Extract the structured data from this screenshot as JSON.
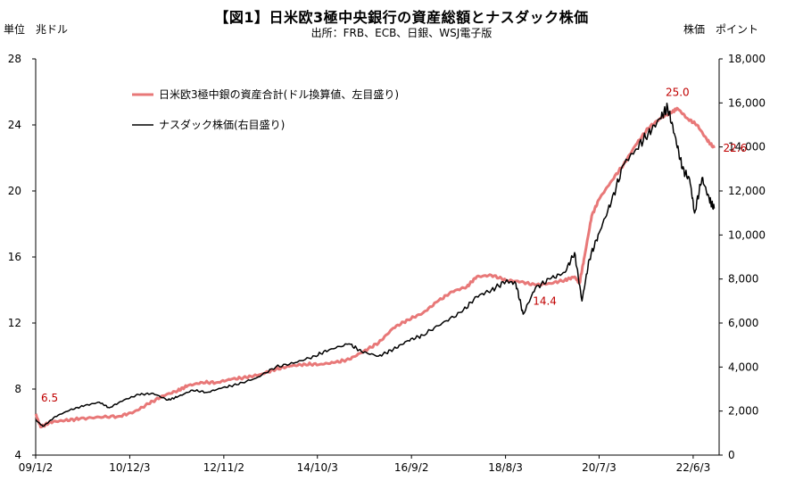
{
  "chart_data": {
    "type": "line",
    "title": "【図1】日米欧3極中央銀行の資産総額とナスダック株価",
    "subtitle": "出所：FRB、ECB、日銀、WSJ電子版",
    "left_axis_label": "単位　兆ドル",
    "right_axis_label": "株価　ポイント",
    "x_tick_labels": [
      "09/1/2",
      "10/12/3",
      "12/11/2",
      "14/10/3",
      "16/9/2",
      "18/8/3",
      "20/7/3",
      "22/6/3"
    ],
    "x_tick_years": [
      2009.0,
      2010.92,
      2012.84,
      2014.75,
      2016.67,
      2018.59,
      2020.5,
      2022.42
    ],
    "x_range": [
      2009.0,
      2022.95
    ],
    "y_left": {
      "min": 4,
      "max": 28,
      "ticks": [
        4,
        8,
        12,
        16,
        20,
        24,
        28
      ]
    },
    "y_right": {
      "min": 0,
      "max": 18000,
      "ticks": [
        "0",
        "2,000",
        "4,000",
        "6,000",
        "8,000",
        "10,000",
        "12,000",
        "14,000",
        "16,000",
        "18,000"
      ]
    },
    "legend": {
      "placement": "top-left"
    },
    "series": [
      {
        "name": "日米欧3極中銀の資産合計(ドル換算値、左目盛り)",
        "axis": "left",
        "color": "#e87878",
        "points": [
          [
            2009.0,
            6.5
          ],
          [
            2009.1,
            5.7
          ],
          [
            2009.3,
            6.0
          ],
          [
            2009.6,
            6.1
          ],
          [
            2009.9,
            6.2
          ],
          [
            2010.3,
            6.3
          ],
          [
            2010.7,
            6.35
          ],
          [
            2011.0,
            6.6
          ],
          [
            2011.3,
            7.1
          ],
          [
            2011.6,
            7.6
          ],
          [
            2011.9,
            7.9
          ],
          [
            2012.1,
            8.2
          ],
          [
            2012.4,
            8.4
          ],
          [
            2012.7,
            8.4
          ],
          [
            2013.0,
            8.6
          ],
          [
            2013.3,
            8.7
          ],
          [
            2013.6,
            8.9
          ],
          [
            2013.9,
            9.2
          ],
          [
            2014.2,
            9.4
          ],
          [
            2014.5,
            9.5
          ],
          [
            2014.8,
            9.5
          ],
          [
            2015.1,
            9.6
          ],
          [
            2015.4,
            9.8
          ],
          [
            2015.7,
            10.3
          ],
          [
            2016.0,
            10.8
          ],
          [
            2016.3,
            11.7
          ],
          [
            2016.6,
            12.2
          ],
          [
            2016.9,
            12.6
          ],
          [
            2017.2,
            13.3
          ],
          [
            2017.5,
            13.9
          ],
          [
            2017.8,
            14.2
          ],
          [
            2018.0,
            14.8
          ],
          [
            2018.3,
            14.9
          ],
          [
            2018.6,
            14.6
          ],
          [
            2018.9,
            14.5
          ],
          [
            2019.2,
            14.3
          ],
          [
            2019.5,
            14.4
          ],
          [
            2019.8,
            14.6
          ],
          [
            2020.0,
            14.8
          ],
          [
            2020.1,
            14.4
          ],
          [
            2020.2,
            16.0
          ],
          [
            2020.35,
            18.5
          ],
          [
            2020.5,
            19.5
          ],
          [
            2020.75,
            20.6
          ],
          [
            2021.0,
            21.6
          ],
          [
            2021.25,
            22.8
          ],
          [
            2021.5,
            23.8
          ],
          [
            2021.75,
            24.4
          ],
          [
            2022.0,
            24.8
          ],
          [
            2022.1,
            25.0
          ],
          [
            2022.3,
            24.4
          ],
          [
            2022.5,
            24.0
          ],
          [
            2022.7,
            23.1
          ],
          [
            2022.85,
            22.6
          ]
        ]
      },
      {
        "name": "ナスダック株価(右目盛り)",
        "axis": "right",
        "color": "#000000",
        "points": [
          [
            2009.0,
            1600
          ],
          [
            2009.15,
            1300
          ],
          [
            2009.4,
            1750
          ],
          [
            2009.7,
            2050
          ],
          [
            2010.0,
            2250
          ],
          [
            2010.3,
            2400
          ],
          [
            2010.5,
            2150
          ],
          [
            2010.8,
            2500
          ],
          [
            2011.1,
            2750
          ],
          [
            2011.4,
            2800
          ],
          [
            2011.7,
            2500
          ],
          [
            2011.9,
            2650
          ],
          [
            2012.2,
            2950
          ],
          [
            2012.5,
            2850
          ],
          [
            2012.8,
            3050
          ],
          [
            2013.1,
            3200
          ],
          [
            2013.5,
            3500
          ],
          [
            2013.9,
            4000
          ],
          [
            2014.3,
            4200
          ],
          [
            2014.7,
            4500
          ],
          [
            2015.0,
            4800
          ],
          [
            2015.4,
            5050
          ],
          [
            2015.65,
            4700
          ],
          [
            2016.0,
            4500
          ],
          [
            2016.3,
            4800
          ],
          [
            2016.6,
            5200
          ],
          [
            2016.9,
            5450
          ],
          [
            2017.3,
            6000
          ],
          [
            2017.7,
            6500
          ],
          [
            2018.0,
            7200
          ],
          [
            2018.3,
            7500
          ],
          [
            2018.6,
            7900
          ],
          [
            2018.8,
            7800
          ],
          [
            2018.95,
            6400
          ],
          [
            2019.2,
            7600
          ],
          [
            2019.5,
            8000
          ],
          [
            2019.8,
            8300
          ],
          [
            2020.0,
            9200
          ],
          [
            2020.15,
            7000
          ],
          [
            2020.3,
            8900
          ],
          [
            2020.5,
            10100
          ],
          [
            2020.75,
            11500
          ],
          [
            2021.0,
            13200
          ],
          [
            2021.25,
            13900
          ],
          [
            2021.5,
            14600
          ],
          [
            2021.75,
            15300
          ],
          [
            2021.9,
            15800
          ],
          [
            2022.05,
            14500
          ],
          [
            2022.2,
            13000
          ],
          [
            2022.35,
            12500
          ],
          [
            2022.45,
            11000
          ],
          [
            2022.6,
            12600
          ],
          [
            2022.75,
            11600
          ],
          [
            2022.85,
            11200
          ]
        ]
      }
    ],
    "annotations": [
      {
        "text": "6.5",
        "x": 2009.0,
        "y": 6.5,
        "axis": "left",
        "color": "#c00000"
      },
      {
        "text": "25.0",
        "x": 2022.1,
        "y": 25.0,
        "axis": "left",
        "color": "#c00000"
      },
      {
        "text": "22.6",
        "x": 2022.85,
        "y": 22.6,
        "axis": "left",
        "color": "#c00000"
      },
      {
        "text": "14.4",
        "x": 2019.5,
        "y": 14.4,
        "axis": "left",
        "color": "#c00000"
      }
    ]
  }
}
